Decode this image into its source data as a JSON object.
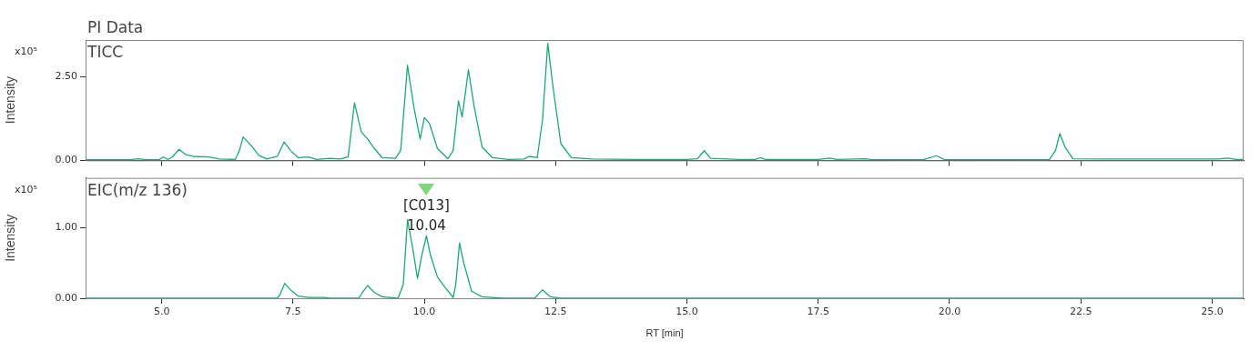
{
  "chart_data": [
    {
      "type": "line",
      "title": "PI Data",
      "subtitle": "TICC",
      "ylabel": "Intensity",
      "annotations": [
        "x10⁵"
      ],
      "tick_labels": "y",
      "grid": false,
      "legend": false,
      "marker": "none",
      "line_style": "solid",
      "xlim": [
        3.55,
        25.6
      ],
      "xticks": [
        5,
        7.5,
        10,
        12.5,
        15,
        17.5,
        20,
        22.5,
        25
      ],
      "ylim": [
        0,
        3.6
      ],
      "yticks": [
        {
          "value": 0,
          "label": "0.00"
        },
        {
          "value": 2.5,
          "label": "2.50"
        }
      ],
      "series": [
        {
          "color": "#1fa57c",
          "x": [
            3.55,
            4.4,
            4.55,
            4.7,
            4.95,
            5.03,
            5.12,
            5.2,
            5.33,
            5.45,
            5.6,
            5.9,
            6.1,
            6.4,
            6.48,
            6.55,
            6.7,
            6.85,
            7.0,
            7.2,
            7.33,
            7.45,
            7.6,
            7.8,
            7.95,
            8.2,
            8.4,
            8.55,
            8.67,
            8.8,
            8.92,
            9.05,
            9.2,
            9.45,
            9.55,
            9.68,
            9.8,
            9.92,
            10.0,
            10.1,
            10.25,
            10.45,
            10.55,
            10.65,
            10.72,
            10.84,
            10.95,
            11.1,
            11.3,
            11.6,
            11.9,
            12.0,
            12.15,
            12.25,
            12.35,
            12.45,
            12.6,
            12.8,
            13.2,
            14.0,
            15.0,
            15.2,
            15.33,
            15.45,
            16.0,
            16.3,
            16.4,
            16.5,
            17.5,
            17.72,
            17.85,
            18.4,
            18.5,
            19.5,
            19.75,
            19.9,
            21.9,
            22.02,
            22.1,
            22.2,
            22.35,
            23.0,
            25.1,
            25.3,
            25.45,
            25.6
          ],
          "values": [
            0.02,
            0.02,
            0.05,
            0.02,
            0.02,
            0.1,
            0.03,
            0.1,
            0.33,
            0.18,
            0.12,
            0.1,
            0.04,
            0.03,
            0.3,
            0.7,
            0.45,
            0.15,
            0.04,
            0.12,
            0.55,
            0.3,
            0.08,
            0.1,
            0.03,
            0.06,
            0.04,
            0.1,
            1.72,
            0.85,
            0.64,
            0.35,
            0.08,
            0.06,
            0.3,
            2.85,
            1.6,
            0.64,
            1.28,
            1.1,
            0.35,
            0.05,
            0.3,
            1.78,
            1.3,
            2.71,
            1.6,
            0.4,
            0.08,
            0.03,
            0.04,
            0.12,
            0.08,
            1.2,
            3.5,
            2.2,
            0.5,
            0.08,
            0.04,
            0.03,
            0.03,
            0.05,
            0.29,
            0.06,
            0.03,
            0.03,
            0.08,
            0.03,
            0.03,
            0.07,
            0.03,
            0.05,
            0.03,
            0.02,
            0.14,
            0.03,
            0.02,
            0.3,
            0.8,
            0.4,
            0.05,
            0.04,
            0.04,
            0.07,
            0.03,
            0.03
          ]
        }
      ]
    },
    {
      "type": "line",
      "title": "EIC(m/z 136)",
      "xlabel": "RT [min]",
      "ylabel": "Intensity",
      "annotations": [
        "x10⁵",
        {
          "text": "[C013]",
          "x": 10.04,
          "y": 0.88
        },
        {
          "text": "10.04",
          "x": 10.04,
          "y": 0.88
        }
      ],
      "grid": false,
      "legend": false,
      "marker": "none",
      "line_style": "solid",
      "xlim": [
        3.55,
        25.6
      ],
      "xticks": [
        {
          "value": 5,
          "label": "5.0"
        },
        {
          "value": 7.5,
          "label": "7.5"
        },
        {
          "value": 10,
          "label": "10.0"
        },
        {
          "value": 12.5,
          "label": "12.5"
        },
        {
          "value": 15,
          "label": "15.0"
        },
        {
          "value": 17.5,
          "label": "17.5"
        },
        {
          "value": 20,
          "label": "20.0"
        },
        {
          "value": 22.5,
          "label": "22.5"
        },
        {
          "value": 25,
          "label": "25.0"
        }
      ],
      "ylim": [
        0,
        1.7
      ],
      "yticks": [
        {
          "value": 0,
          "label": "0.00"
        },
        {
          "value": 1,
          "label": "1.00"
        }
      ],
      "series": [
        {
          "color": "#1fa57c",
          "x": [
            3.55,
            7.2,
            7.25,
            7.34,
            7.45,
            7.6,
            7.8,
            8.1,
            8.2,
            8.75,
            8.82,
            8.92,
            9.05,
            9.2,
            9.5,
            9.6,
            9.68,
            9.78,
            9.87,
            9.95,
            10.04,
            10.12,
            10.25,
            10.4,
            10.55,
            10.6,
            10.67,
            10.75,
            10.9,
            11.1,
            11.5,
            12.1,
            12.25,
            12.4,
            12.6,
            25.6
          ],
          "values": [
            0,
            0,
            0.05,
            0.21,
            0.12,
            0.03,
            0.01,
            0.01,
            0,
            0,
            0.08,
            0.18,
            0.08,
            0.02,
            0,
            0.2,
            1.11,
            0.7,
            0.28,
            0.6,
            0.88,
            0.6,
            0.3,
            0.15,
            0.01,
            0.2,
            0.78,
            0.5,
            0.1,
            0.02,
            0,
            0,
            0.12,
            0.02,
            0,
            0
          ]
        }
      ]
    }
  ]
}
